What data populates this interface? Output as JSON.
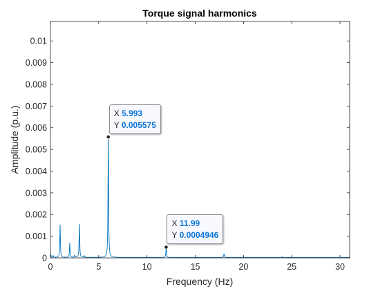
{
  "chart_data": {
    "type": "line",
    "title": "Torque signal harmonics",
    "xlabel": "Frequency (Hz)",
    "ylabel": "Amplitude (p.u.)",
    "xlim": [
      0,
      31
    ],
    "ylim": [
      0,
      0.0109
    ],
    "xticks": [
      0,
      5,
      10,
      15,
      20,
      25,
      30
    ],
    "xtick_labels": [
      "0",
      "5",
      "10",
      "15",
      "20",
      "25",
      "30"
    ],
    "yticks": [
      0,
      0.001,
      0.002,
      0.003,
      0.004,
      0.005,
      0.006,
      0.007,
      0.008,
      0.009,
      0.01
    ],
    "ytick_labels": [
      "0",
      "0.001",
      "0.002",
      "0.003",
      "0.004",
      "0.005",
      "0.006",
      "0.007",
      "0.008",
      "0.009",
      "0.01"
    ],
    "grid": false,
    "line_color": "#0072bd",
    "series": [
      {
        "peaks": [
          {
            "x": 0.05,
            "y": 0.00012
          },
          {
            "x": 0.3,
            "y": 8e-05
          },
          {
            "x": 1.0,
            "y": 0.00152
          },
          {
            "x": 2.0,
            "y": 0.00066
          },
          {
            "x": 2.5,
            "y": 0.0001
          },
          {
            "x": 3.0,
            "y": 0.00155
          },
          {
            "x": 3.5,
            "y": 8e-05
          },
          {
            "x": 5.993,
            "y": 0.005575
          },
          {
            "x": 11.99,
            "y": 0.0004946
          },
          {
            "x": 17.98,
            "y": 0.00017
          },
          {
            "x": 24.0,
            "y": 3e-05
          }
        ],
        "baseline": 2e-05
      }
    ],
    "datatips": [
      {
        "x_label": "X",
        "x_value": "5.993",
        "y_label": "Y",
        "y_value": "0.005575",
        "x": 5.993,
        "y": 0.005575
      },
      {
        "x_label": "X",
        "x_value": "11.99",
        "y_label": "Y",
        "y_value": "0.0004946",
        "x": 11.99,
        "y": 0.0004946
      }
    ]
  }
}
